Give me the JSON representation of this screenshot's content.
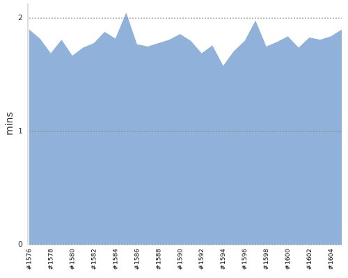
{
  "chart_data": {
    "type": "area",
    "y_label": "mins",
    "categories": [
      "#1576",
      null,
      "#1578",
      null,
      "#1580",
      null,
      "#1582",
      null,
      "#1584",
      null,
      "#1586",
      null,
      "#1588",
      null,
      "#1590",
      null,
      "#1592",
      null,
      "#1594",
      null,
      "#1596",
      null,
      "#1598",
      null,
      "#1600",
      null,
      "#1602",
      null,
      "#1604",
      null
    ],
    "values": [
      1.9,
      1.82,
      1.69,
      1.81,
      1.67,
      1.74,
      1.78,
      1.88,
      1.82,
      2.05,
      1.77,
      1.75,
      1.78,
      1.81,
      1.86,
      1.8,
      1.69,
      1.76,
      1.58,
      1.71,
      1.8,
      1.98,
      1.75,
      1.79,
      1.84,
      1.74,
      1.83,
      1.81,
      1.84,
      1.9
    ],
    "color": "#8fb1da",
    "ylim": [
      0,
      2.13
    ],
    "yticks": [
      0,
      1,
      2
    ],
    "grid": true
  }
}
